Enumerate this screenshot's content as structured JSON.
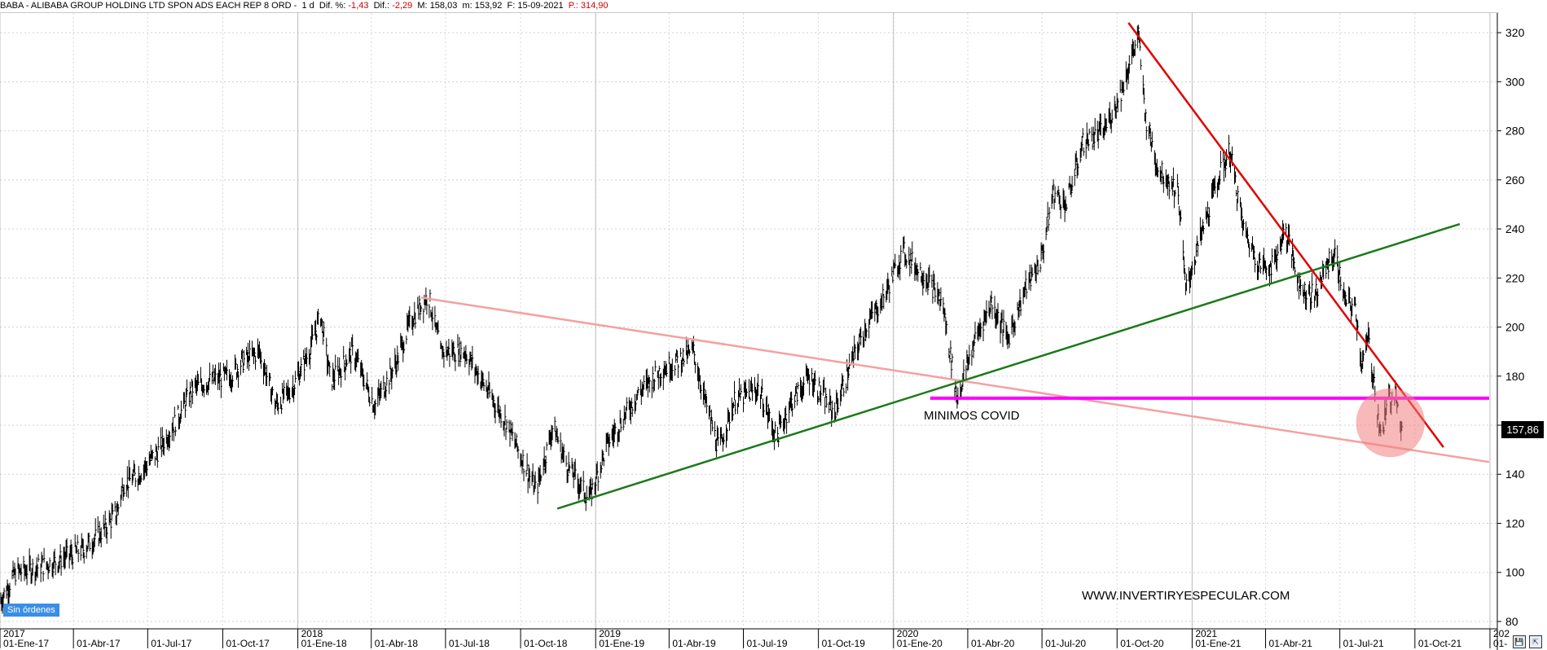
{
  "header": {
    "title": "BABA - ALIBABA GROUP HOLDING LTD SPON ADS EACH REP 8 ORD -",
    "timeframe": "1 d",
    "dif_pct_label": "Dif. %:",
    "dif_pct_value": "-1,43",
    "dif_label": "Dif.:",
    "dif_value": "-2,29",
    "m_label": "M:",
    "m_value": "158,03",
    "m2_label": "m:",
    "m2_value": "153,92",
    "f_label": "F:",
    "f_value": "15-09-2021",
    "p_label": "P.:",
    "p_value": "314,90"
  },
  "price_label": "157,86",
  "orders_badge": "Sin órdenes",
  "bottom_icons": [
    "save-icon",
    "cursor-icon"
  ],
  "colors": {
    "price": "#000000",
    "support_line": "#1a7a1a",
    "resistance_line": "#e00000",
    "long_trend_line": "#f5a0a0",
    "covid_level": "#ff00ff",
    "highlight_circle": "#f08080"
  },
  "annotations": {
    "covid_label": "MINIMOS COVID",
    "website": "WWW.INVERTIRYESPECULAR.COM"
  },
  "chart_data": {
    "type": "line",
    "ylim": [
      77,
      328
    ],
    "x_range": [
      "2017-01-01",
      "2022-01-10"
    ],
    "y_ticks": [
      80,
      100,
      120,
      140,
      160,
      180,
      200,
      220,
      240,
      260,
      280,
      300,
      320
    ],
    "year_labels": [
      {
        "date": "2017-01-01",
        "label": "2017"
      },
      {
        "date": "2018-01-01",
        "label": "2018"
      },
      {
        "date": "2019-01-01",
        "label": "2019"
      },
      {
        "date": "2020-01-01",
        "label": "2020"
      },
      {
        "date": "2021-01-01",
        "label": "2021"
      },
      {
        "date": "2022-01-01",
        "label": "202"
      }
    ],
    "x_ticks": [
      {
        "date": "2017-01-01",
        "label": "01-Ene-17"
      },
      {
        "date": "2017-04-01",
        "label": "01-Abr-17"
      },
      {
        "date": "2017-07-01",
        "label": "01-Jul-17"
      },
      {
        "date": "2017-10-01",
        "label": "01-Oct-17"
      },
      {
        "date": "2018-01-01",
        "label": "01-Ene-18"
      },
      {
        "date": "2018-04-01",
        "label": "01-Abr-18"
      },
      {
        "date": "2018-07-01",
        "label": "01-Jul-18"
      },
      {
        "date": "2018-10-01",
        "label": "01-Oct-18"
      },
      {
        "date": "2019-01-01",
        "label": "01-Ene-19"
      },
      {
        "date": "2019-04-01",
        "label": "01-Abr-19"
      },
      {
        "date": "2019-07-01",
        "label": "01-Jul-19"
      },
      {
        "date": "2019-10-01",
        "label": "01-Oct-19"
      },
      {
        "date": "2020-01-01",
        "label": "01-Ene-20"
      },
      {
        "date": "2020-04-01",
        "label": "01-Abr-20"
      },
      {
        "date": "2020-07-01",
        "label": "01-Jul-20"
      },
      {
        "date": "2020-10-01",
        "label": "01-Oct-20"
      },
      {
        "date": "2021-01-01",
        "label": "01-Ene-21"
      },
      {
        "date": "2021-04-01",
        "label": "01-Abr-21"
      },
      {
        "date": "2021-07-01",
        "label": "01-Jul-21"
      },
      {
        "date": "2021-10-01",
        "label": "01-Oct-21"
      },
      {
        "date": "2022-01-01",
        "label": "01-"
      }
    ],
    "price_series": [
      {
        "date": "2017-01-01",
        "value": 88
      },
      {
        "date": "2017-01-20",
        "value": 100
      },
      {
        "date": "2017-02-15",
        "value": 102
      },
      {
        "date": "2017-03-15",
        "value": 105
      },
      {
        "date": "2017-04-15",
        "value": 110
      },
      {
        "date": "2017-05-10",
        "value": 118
      },
      {
        "date": "2017-05-25",
        "value": 125
      },
      {
        "date": "2017-06-01",
        "value": 136
      },
      {
        "date": "2017-06-20",
        "value": 140
      },
      {
        "date": "2017-07-15",
        "value": 150
      },
      {
        "date": "2017-08-10",
        "value": 165
      },
      {
        "date": "2017-08-25",
        "value": 175
      },
      {
        "date": "2017-09-15",
        "value": 178
      },
      {
        "date": "2017-10-10",
        "value": 180
      },
      {
        "date": "2017-10-25",
        "value": 186
      },
      {
        "date": "2017-11-15",
        "value": 190
      },
      {
        "date": "2017-12-05",
        "value": 168
      },
      {
        "date": "2017-12-25",
        "value": 175
      },
      {
        "date": "2018-01-15",
        "value": 190
      },
      {
        "date": "2018-01-29",
        "value": 205
      },
      {
        "date": "2018-02-10",
        "value": 178
      },
      {
        "date": "2018-03-10",
        "value": 190
      },
      {
        "date": "2018-04-05",
        "value": 168
      },
      {
        "date": "2018-05-01",
        "value": 185
      },
      {
        "date": "2018-05-20",
        "value": 203
      },
      {
        "date": "2018-06-10",
        "value": 213
      },
      {
        "date": "2018-06-25",
        "value": 190
      },
      {
        "date": "2018-07-25",
        "value": 190
      },
      {
        "date": "2018-08-20",
        "value": 175
      },
      {
        "date": "2018-09-15",
        "value": 160
      },
      {
        "date": "2018-10-20",
        "value": 133
      },
      {
        "date": "2018-11-10",
        "value": 160
      },
      {
        "date": "2018-11-25",
        "value": 145
      },
      {
        "date": "2018-12-24",
        "value": 130
      },
      {
        "date": "2019-01-15",
        "value": 152
      },
      {
        "date": "2019-02-20",
        "value": 172
      },
      {
        "date": "2019-03-20",
        "value": 182
      },
      {
        "date": "2019-04-15",
        "value": 187
      },
      {
        "date": "2019-05-01",
        "value": 190
      },
      {
        "date": "2019-05-15",
        "value": 170
      },
      {
        "date": "2019-06-01",
        "value": 150
      },
      {
        "date": "2019-06-20",
        "value": 170
      },
      {
        "date": "2019-07-20",
        "value": 175
      },
      {
        "date": "2019-08-10",
        "value": 155
      },
      {
        "date": "2019-08-30",
        "value": 170
      },
      {
        "date": "2019-09-20",
        "value": 180
      },
      {
        "date": "2019-10-20",
        "value": 165
      },
      {
        "date": "2019-11-10",
        "value": 185
      },
      {
        "date": "2019-11-28",
        "value": 200
      },
      {
        "date": "2019-12-20",
        "value": 212
      },
      {
        "date": "2020-01-13",
        "value": 231
      },
      {
        "date": "2020-02-10",
        "value": 220
      },
      {
        "date": "2020-03-01",
        "value": 210
      },
      {
        "date": "2020-03-19",
        "value": 171
      },
      {
        "date": "2020-04-10",
        "value": 195
      },
      {
        "date": "2020-04-30",
        "value": 210
      },
      {
        "date": "2020-05-20",
        "value": 195
      },
      {
        "date": "2020-06-10",
        "value": 215
      },
      {
        "date": "2020-06-30",
        "value": 228
      },
      {
        "date": "2020-07-15",
        "value": 255
      },
      {
        "date": "2020-07-31",
        "value": 250
      },
      {
        "date": "2020-08-20",
        "value": 275
      },
      {
        "date": "2020-09-15",
        "value": 280
      },
      {
        "date": "2020-10-05",
        "value": 295
      },
      {
        "date": "2020-10-27",
        "value": 319
      },
      {
        "date": "2020-11-05",
        "value": 285
      },
      {
        "date": "2020-11-20",
        "value": 265
      },
      {
        "date": "2020-12-15",
        "value": 255
      },
      {
        "date": "2020-12-24",
        "value": 215
      },
      {
        "date": "2021-01-10",
        "value": 235
      },
      {
        "date": "2021-02-01",
        "value": 260
      },
      {
        "date": "2021-02-16",
        "value": 272
      },
      {
        "date": "2021-03-05",
        "value": 240
      },
      {
        "date": "2021-03-25",
        "value": 225
      },
      {
        "date": "2021-04-10",
        "value": 225
      },
      {
        "date": "2021-04-25",
        "value": 240
      },
      {
        "date": "2021-05-15",
        "value": 215
      },
      {
        "date": "2021-06-01",
        "value": 213
      },
      {
        "date": "2021-06-15",
        "value": 225
      },
      {
        "date": "2021-06-25",
        "value": 230
      },
      {
        "date": "2021-07-08",
        "value": 210
      },
      {
        "date": "2021-07-20",
        "value": 208
      },
      {
        "date": "2021-07-28",
        "value": 185
      },
      {
        "date": "2021-08-05",
        "value": 195
      },
      {
        "date": "2021-08-15",
        "value": 170
      },
      {
        "date": "2021-08-20",
        "value": 155
      },
      {
        "date": "2021-08-30",
        "value": 170
      },
      {
        "date": "2021-09-08",
        "value": 175
      },
      {
        "date": "2021-09-15",
        "value": 157.86
      }
    ],
    "trend_lines": [
      {
        "name": "long_trend",
        "color_key": "long_trend_line",
        "from": {
          "date": "2018-06-01",
          "value": 212
        },
        "to": {
          "date": "2021-12-31",
          "value": 145
        },
        "width": 2.5
      },
      {
        "name": "support",
        "color_key": "support_line",
        "from": {
          "date": "2018-11-15",
          "value": 126
        },
        "to": {
          "date": "2021-11-25",
          "value": 242
        },
        "width": 2.5
      },
      {
        "name": "resistance",
        "color_key": "resistance_line",
        "from": {
          "date": "2020-10-15",
          "value": 324
        },
        "to": {
          "date": "2021-11-05",
          "value": 151
        },
        "width": 2.5
      },
      {
        "name": "covid_level",
        "color_key": "covid_level",
        "from": {
          "date": "2020-02-15",
          "value": 171
        },
        "to": {
          "date": "2021-12-31",
          "value": 171
        },
        "width": 4
      }
    ],
    "highlight_circle": {
      "date": "2021-09-01",
      "value": 161,
      "radius_value": 14
    },
    "current_price": 157.86
  }
}
